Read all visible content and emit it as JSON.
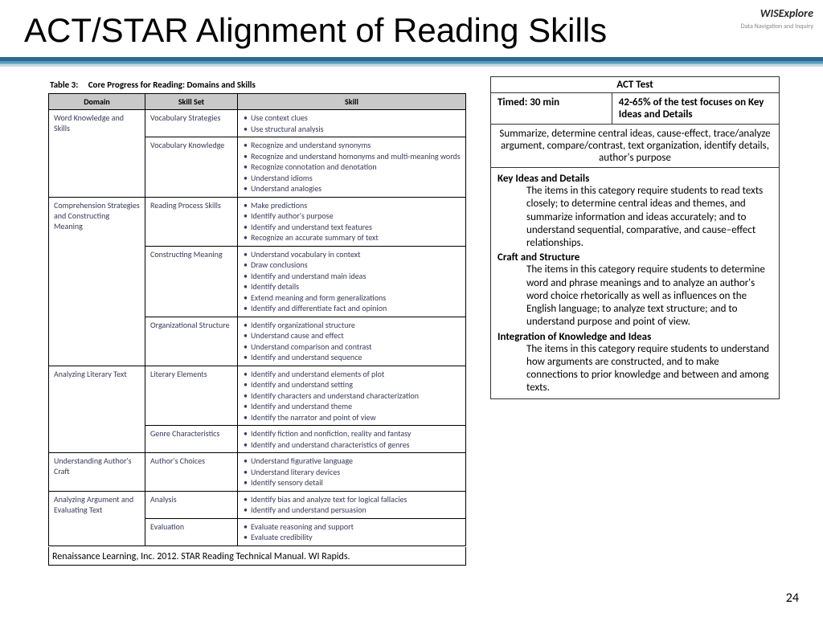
{
  "logo": {
    "brand": "WISExplore",
    "sub": "Data Navigation and Inquiry"
  },
  "title": "ACT/STAR Alignment of Reading Skills",
  "table3": {
    "caption_label": "Table 3:",
    "caption_text": "Core Progress for Reading: Domains and Skills",
    "headers": [
      "Domain",
      "Skill Set",
      "Skill"
    ],
    "rows": [
      {
        "domain": "Word Knowledge and Skills",
        "skillsets": [
          {
            "name": "Vocabulary Strategies",
            "skills": [
              "Use context clues",
              "Use structural analysis"
            ]
          },
          {
            "name": "Vocabulary Knowledge",
            "skills": [
              "Recognize and understand synonyms",
              "Recognize and understand homonyms and multi-meaning words",
              "Recognize connotation and denotation",
              "Understand idioms",
              "Understand analogies"
            ]
          }
        ]
      },
      {
        "domain": "Comprehension Strategies and Constructing Meaning",
        "skillsets": [
          {
            "name": "Reading Process Skills",
            "skills": [
              "Make predictions",
              "Identify author's purpose",
              "Identify and understand text features",
              "Recognize an accurate summary of text"
            ]
          },
          {
            "name": "Constructing Meaning",
            "skills": [
              "Understand vocabulary in context",
              "Draw conclusions",
              "Identify and understand main ideas",
              "Identify details",
              "Extend meaning and form generalizations",
              "Identify and differentiate fact and opinion"
            ]
          },
          {
            "name": "Organizational Structure",
            "skills": [
              "Identify organizational structure",
              "Understand cause and effect",
              "Understand comparison and contrast",
              "Identify and understand sequence"
            ]
          }
        ]
      },
      {
        "domain": "Analyzing Literary Text",
        "skillsets": [
          {
            "name": "Literary Elements",
            "skills": [
              "Identify and understand elements of plot",
              "Identify and understand setting",
              "Identify characters and understand characterization",
              "Identify and understand theme",
              "Identify the narrator and point of view"
            ]
          },
          {
            "name": "Genre Characteristics",
            "skills": [
              "Identify fiction and nonfiction, reality and fantasy",
              "Identify and understand characteristics of genres"
            ]
          }
        ]
      },
      {
        "domain": "Understanding Author's Craft",
        "skillsets": [
          {
            "name": "Author's Choices",
            "skills": [
              "Understand figurative language",
              "Understand literary devices",
              "Identify sensory detail"
            ]
          }
        ]
      },
      {
        "domain": "Analyzing Argument and Evaluating Text",
        "skillsets": [
          {
            "name": "Analysis",
            "skills": [
              "Identify bias and analyze text for logical fallacies",
              "Identify and understand persuasion"
            ]
          },
          {
            "name": "Evaluation",
            "skills": [
              "Evaluate reasoning and support",
              "Evaluate credibility"
            ]
          }
        ]
      }
    ],
    "source": "Renaissance Learning, Inc. 2012. STAR Reading Technical Manual. WI Rapids."
  },
  "act": {
    "title": "ACT Test",
    "timed": "Timed: 30 min",
    "focus": "42-65% of the test focuses on Key Ideas and Details",
    "summary": "Summarize, determine central ideas, cause-effect, trace/analyze argument, compare/contrast, text organization, identify details, author's purpose",
    "sections": [
      {
        "title": "Key Ideas and Details",
        "body": "The items in this category require students to read texts closely; to determine central ideas and themes, and summarize information and ideas accurately; and to understand sequential, comparative, and cause–effect relationships."
      },
      {
        "title": "Craft and Structure",
        "body": "The items in this category require students to determine word and phrase meanings and to analyze an author's word choice rhetorically as well as influences on the English language; to analyze text structure; and to understand purpose and point of view."
      },
      {
        "title": "Integration of Knowledge and Ideas",
        "body": "The items in this category require students to understand how arguments are constructed, and to make connections to prior knowledge and between and among texts."
      }
    ]
  },
  "page_number": "24"
}
